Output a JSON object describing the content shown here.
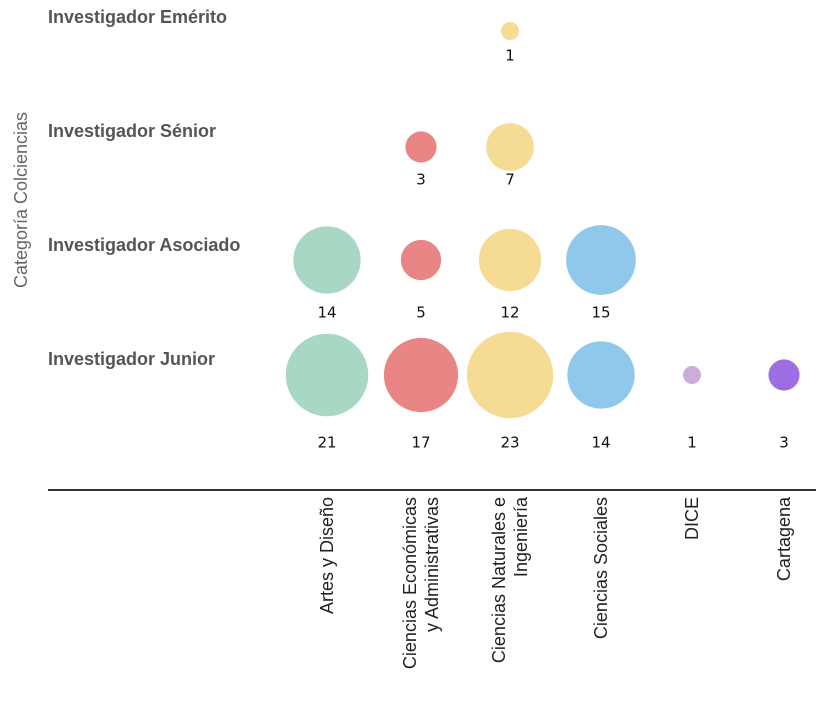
{
  "chart_data": {
    "type": "bubble",
    "y_axis_label": "Categoría Colciencias",
    "categories": [
      "Artes y Diseño",
      "Ciencias Económicas\ny Administrativas",
      "Ciencias Naturales e\nIngeniería",
      "Ciencias Sociales",
      "DICE",
      "Cartagena"
    ],
    "rows": [
      "Investigador Emérito",
      "Investigador Sénior",
      "Investigador Asociado",
      "Investigador Junior"
    ],
    "colors": [
      "#a8d8c3",
      "#ea8585",
      "#f6db94",
      "#90c8ec",
      "#cbaddb",
      "#9c6ee3"
    ],
    "values": [
      [
        null,
        null,
        1,
        null,
        null,
        null
      ],
      [
        null,
        3,
        7,
        null,
        null,
        null
      ],
      [
        14,
        5,
        12,
        15,
        null,
        null
      ],
      [
        21,
        17,
        23,
        14,
        1,
        3
      ]
    ]
  }
}
